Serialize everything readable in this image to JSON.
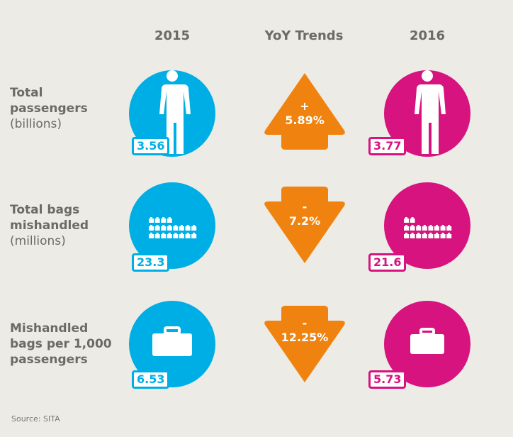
{
  "headers": {
    "col2015": "2015",
    "trend": "YoY Trends",
    "col2016": "2016"
  },
  "colors": {
    "y2015": "#00aee6",
    "y2016": "#d6137f",
    "trend": "#f0830f",
    "background": "#ecebe5"
  },
  "rows": [
    {
      "label": "Total passengers",
      "unit": "(billions)",
      "icon": "person-icon",
      "v2015": "3.56",
      "v2016": "3.77",
      "trend_sign": "+",
      "trend_value": "5.89%",
      "direction": "up"
    },
    {
      "label": "Total bags mishandled",
      "unit": "(millions)",
      "icon": "bags-grid-icon",
      "v2015": "23.3",
      "v2016": "21.6",
      "trend_sign": "-",
      "trend_value": "7.2%",
      "direction": "down",
      "bag_icons_2015": 20,
      "bag_icons_2016": 18
    },
    {
      "label": "Mishandled bags per 1,000 passengers",
      "unit": "",
      "icon": "suitcase-icon",
      "v2015": "6.53",
      "v2016": "5.73",
      "trend_sign": "-",
      "trend_value": "12.25%",
      "direction": "down"
    }
  ],
  "source": "Source: SITA"
}
